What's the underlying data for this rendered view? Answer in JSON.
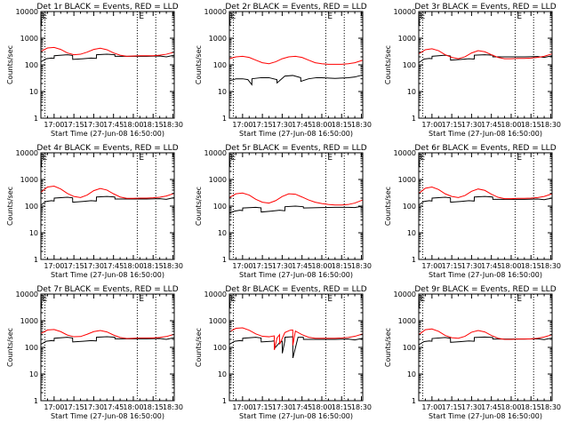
{
  "chart_data": {
    "type": "line",
    "common": {
      "x_tick_labels": [
        "17:00",
        "17:15",
        "17:30",
        "17:45",
        "18:00",
        "18:15",
        "18:30"
      ],
      "x_ticks_minutes": [
        10,
        25,
        40,
        55,
        70,
        85,
        100
      ],
      "x_range_minutes": [
        0,
        101
      ],
      "x_origin": "16:50:00",
      "xlabel": "Start Time (27-Jun-08 16:50:00)",
      "ylabel": "Counts/sec",
      "y_scale": "log",
      "y_range": [
        1,
        10000
      ],
      "y_tick_labels": [
        "1",
        "10",
        "100",
        "1000",
        "10000"
      ],
      "vertical_dotted_lines_minutes": [
        3,
        73,
        87
      ],
      "top_marker_letters": [
        "E",
        "E"
      ],
      "series_colors": {
        "black": "#000000",
        "red": "#ff0000"
      }
    },
    "panels": [
      {
        "title": "Det 1r BLACK = Events, RED = LLD",
        "series": [
          {
            "color": "black",
            "x": [
              0,
              4,
              8,
              10,
              10.1,
              20,
              24,
              24.1,
              32,
              38,
              42,
              42.1,
              50,
              56,
              56.1,
              70,
              80,
              90,
              95,
              101
            ],
            "y": [
              130,
              170,
              180,
              175,
              220,
              240,
              225,
              160,
              170,
              180,
              175,
              240,
              250,
              240,
              210,
              210,
              210,
              215,
              200,
              230
            ]
          },
          {
            "color": "black",
            "x": [
              0,
              0.5
            ],
            "y": [
              10000,
              3000
            ]
          },
          {
            "color": "red",
            "x": [
              0,
              5,
              10,
              15,
              20,
              25,
              30,
              35,
              40,
              45,
              50,
              55,
              60,
              65,
              70,
              75,
              80,
              85,
              90,
              95,
              101
            ],
            "y": [
              320,
              430,
              450,
              380,
              280,
              240,
              250,
              300,
              380,
              420,
              370,
              280,
              230,
              210,
              215,
              220,
              220,
              220,
              230,
              250,
              300
            ]
          }
        ]
      },
      {
        "title": "Det 2r BLACK = Events, RED = LLD",
        "series": [
          {
            "color": "black",
            "x": [
              0,
              5,
              10,
              14,
              17,
              17.1,
              24,
              30,
              36,
              36.1,
              42,
              48,
              54,
              54.1,
              60,
              66,
              70,
              75,
              80,
              85,
              90,
              95,
              101
            ],
            "y": [
              25,
              30,
              30,
              28,
              18,
              30,
              33,
              33,
              28,
              21,
              38,
              40,
              33,
              24,
              30,
              33,
              33,
              32,
              31,
              32,
              33,
              35,
              42
            ]
          },
          {
            "color": "black",
            "x": [
              0,
              0.5
            ],
            "y": [
              10000,
              3000
            ]
          },
          {
            "color": "red",
            "x": [
              0,
              5,
              10,
              15,
              20,
              25,
              30,
              35,
              40,
              45,
              50,
              55,
              60,
              65,
              70,
              75,
              80,
              85,
              90,
              95,
              101
            ],
            "y": [
              170,
              200,
              210,
              190,
              150,
              120,
              110,
              130,
              170,
              200,
              210,
              190,
              150,
              120,
              110,
              105,
              105,
              105,
              110,
              120,
              150
            ]
          }
        ]
      },
      {
        "title": "Det 3r BLACK = Events, RED = LLD",
        "series": [
          {
            "color": "black",
            "x": [
              0,
              4,
              8,
              10,
              10.1,
              20,
              24,
              24.1,
              32,
              38,
              42,
              42.1,
              50,
              56,
              56.1,
              70,
              80,
              90,
              95,
              101
            ],
            "y": [
              120,
              165,
              175,
              170,
              210,
              230,
              215,
              150,
              160,
              170,
              165,
              230,
              240,
              230,
              200,
              200,
              200,
              205,
              190,
              220
            ]
          },
          {
            "color": "black",
            "x": [
              0,
              0.5
            ],
            "y": [
              10000,
              3000
            ]
          },
          {
            "color": "red",
            "x": [
              0,
              5,
              10,
              15,
              20,
              25,
              30,
              35,
              40,
              45,
              50,
              55,
              60,
              65,
              70,
              75,
              80,
              85,
              90,
              95,
              101
            ],
            "y": [
              260,
              370,
              400,
              340,
              240,
              190,
              170,
              200,
              280,
              340,
              310,
              240,
              190,
              170,
              170,
              175,
              175,
              180,
              190,
              210,
              260
            ]
          }
        ]
      },
      {
        "title": "Det 4r BLACK = Events, RED = LLD",
        "series": [
          {
            "color": "black",
            "x": [
              0,
              4,
              8,
              10,
              10.1,
              20,
              24,
              24.1,
              32,
              38,
              42,
              42.1,
              50,
              56,
              56.1,
              70,
              80,
              90,
              95,
              101
            ],
            "y": [
              110,
              150,
              160,
              155,
              200,
              215,
              205,
              140,
              150,
              160,
              155,
              220,
              230,
              220,
              185,
              185,
              185,
              190,
              180,
              210
            ]
          },
          {
            "color": "black",
            "x": [
              0,
              0.5
            ],
            "y": [
              10000,
              3000
            ]
          },
          {
            "color": "red",
            "x": [
              0,
              5,
              10,
              15,
              20,
              25,
              30,
              35,
              40,
              45,
              50,
              55,
              60,
              65,
              70,
              75,
              80,
              85,
              90,
              95,
              101
            ],
            "y": [
              330,
              520,
              560,
              440,
              300,
              230,
              210,
              260,
              380,
              460,
              400,
              290,
              220,
              195,
              195,
              200,
              200,
              205,
              215,
              240,
              300
            ]
          }
        ]
      },
      {
        "title": "Det 5r BLACK = Events, RED = LLD",
        "series": [
          {
            "color": "black",
            "x": [
              0,
              4,
              8,
              10,
              10.1,
              20,
              24,
              24.1,
              32,
              38,
              42,
              42.1,
              50,
              56,
              56.1,
              70,
              80,
              90,
              95,
              101
            ],
            "y": [
              55,
              65,
              70,
              68,
              85,
              90,
              86,
              60,
              65,
              70,
              67,
              95,
              100,
              95,
              85,
              88,
              90,
              90,
              88,
              100
            ]
          },
          {
            "color": "black",
            "x": [
              0,
              0.5
            ],
            "y": [
              10000,
              3000
            ]
          },
          {
            "color": "red",
            "x": [
              0,
              5,
              10,
              15,
              20,
              25,
              30,
              35,
              40,
              45,
              50,
              55,
              60,
              65,
              70,
              75,
              80,
              85,
              90,
              95,
              101
            ],
            "y": [
              210,
              290,
              310,
              260,
              180,
              140,
              130,
              160,
              230,
              290,
              280,
              220,
              170,
              140,
              125,
              115,
              110,
              110,
              115,
              130,
              170
            ]
          }
        ]
      },
      {
        "title": "Det 6r BLACK = Events, RED = LLD",
        "series": [
          {
            "color": "black",
            "x": [
              0,
              4,
              8,
              10,
              10.1,
              20,
              24,
              24.1,
              32,
              38,
              42,
              42.1,
              50,
              56,
              56.1,
              70,
              80,
              90,
              95,
              101
            ],
            "y": [
              110,
              150,
              160,
              155,
              200,
              215,
              205,
              140,
              150,
              160,
              155,
              220,
              230,
              220,
              180,
              180,
              180,
              185,
              175,
              200
            ]
          },
          {
            "color": "black",
            "x": [
              0,
              0.5
            ],
            "y": [
              10000,
              3000
            ]
          },
          {
            "color": "red",
            "x": [
              0,
              5,
              10,
              15,
              20,
              25,
              30,
              35,
              40,
              45,
              50,
              55,
              60,
              65,
              70,
              75,
              80,
              85,
              90,
              95,
              101
            ],
            "y": [
              300,
              470,
              520,
              420,
              290,
              230,
              210,
              250,
              360,
              440,
              390,
              280,
              215,
              190,
              190,
              195,
              195,
              200,
              210,
              230,
              290
            ]
          }
        ]
      },
      {
        "title": "Det 7r BLACK = Events, RED = LLD",
        "series": [
          {
            "color": "black",
            "x": [
              0,
              4,
              8,
              10,
              10.1,
              20,
              24,
              24.1,
              32,
              38,
              42,
              42.1,
              50,
              56,
              56.1,
              70,
              80,
              90,
              95,
              101
            ],
            "y": [
              130,
              170,
              180,
              175,
              220,
              240,
              225,
              160,
              170,
              180,
              175,
              240,
              250,
              240,
              210,
              210,
              210,
              215,
              200,
              230
            ]
          },
          {
            "color": "black",
            "x": [
              0,
              0.5
            ],
            "y": [
              10000,
              3000
            ]
          },
          {
            "color": "red",
            "x": [
              0,
              5,
              10,
              15,
              20,
              25,
              30,
              35,
              40,
              45,
              50,
              55,
              60,
              65,
              70,
              75,
              80,
              85,
              90,
              95,
              101
            ],
            "y": [
              330,
              450,
              470,
              390,
              290,
              250,
              255,
              310,
              390,
              430,
              380,
              290,
              235,
              215,
              220,
              225,
              225,
              225,
              235,
              255,
              310
            ]
          }
        ]
      },
      {
        "title": "Det 8r BLACK = Events, RED = LLD",
        "series": [
          {
            "color": "black",
            "x": [
              0,
              4,
              8,
              10,
              10.1,
              20,
              24,
              24.1,
              32,
              34,
              34.1,
              38,
              40,
              40.1,
              42,
              42.1,
              48,
              48.1,
              52,
              56,
              56.1,
              70,
              80,
              90,
              95,
              101
            ],
            "y": [
              130,
              170,
              180,
              175,
              220,
              240,
              225,
              160,
              170,
              175,
              90,
              150,
              170,
              60,
              175,
              240,
              250,
              40,
              240,
              240,
              200,
              200,
              200,
              205,
              190,
              220
            ]
          },
          {
            "color": "black",
            "x": [
              0,
              0.5
            ],
            "y": [
              10000,
              3000
            ]
          },
          {
            "color": "red",
            "x": [
              0,
              5,
              10,
              15,
              20,
              25,
              30,
              34,
              34.1,
              36,
              38,
              38.1,
              42,
              46,
              48,
              48.1,
              50,
              55,
              60,
              65,
              70,
              75,
              80,
              85,
              90,
              95,
              101
            ],
            "y": [
              380,
              520,
              540,
              440,
              320,
              260,
              250,
              270,
              80,
              220,
              300,
              130,
              360,
              440,
              450,
              120,
              410,
              300,
              240,
              220,
              220,
              220,
              220,
              225,
              235,
              260,
              320
            ]
          }
        ]
      },
      {
        "title": "Det 9r BLACK = Events, RED = LLD",
        "series": [
          {
            "color": "black",
            "x": [
              0,
              4,
              8,
              10,
              10.1,
              20,
              24,
              24.1,
              32,
              38,
              42,
              42.1,
              50,
              56,
              56.1,
              70,
              80,
              90,
              95,
              101
            ],
            "y": [
              125,
              165,
              175,
              170,
              215,
              235,
              220,
              155,
              165,
              175,
              170,
              235,
              245,
              235,
              205,
              205,
              205,
              210,
              195,
              225
            ]
          },
          {
            "color": "black",
            "x": [
              0,
              0.5
            ],
            "y": [
              10000,
              3000
            ]
          },
          {
            "color": "red",
            "x": [
              0,
              5,
              10,
              15,
              20,
              25,
              30,
              35,
              40,
              45,
              50,
              55,
              60,
              65,
              70,
              75,
              80,
              85,
              90,
              95,
              101
            ],
            "y": [
              300,
              460,
              490,
              400,
              280,
              230,
              220,
              260,
              370,
              430,
              380,
              280,
              220,
              200,
              200,
              205,
              205,
              210,
              220,
              245,
              300
            ]
          }
        ]
      }
    ]
  }
}
